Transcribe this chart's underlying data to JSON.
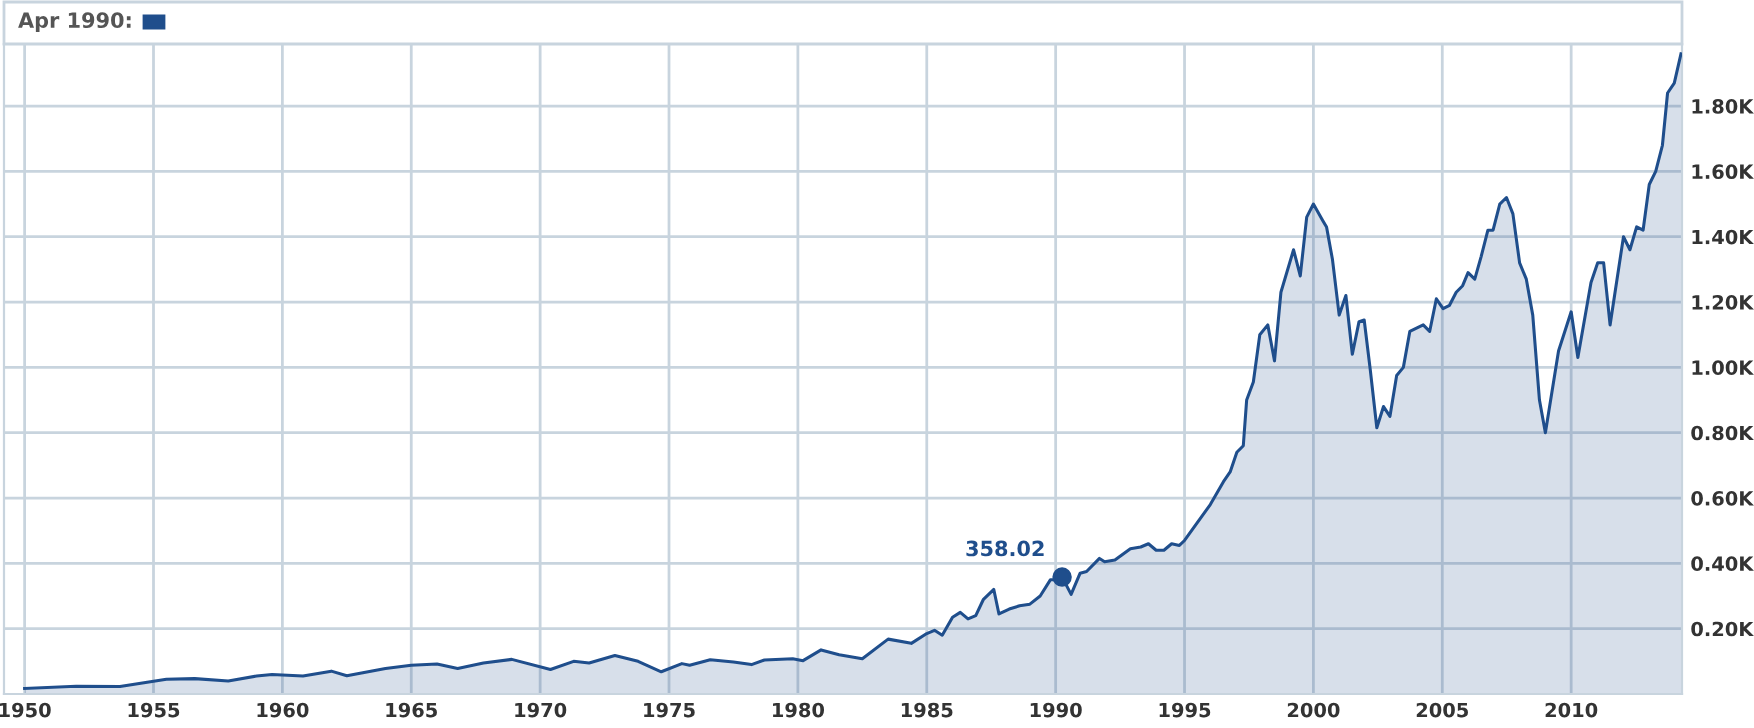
{
  "chart_data": {
    "type": "area",
    "x": [
      1950.0,
      1952.0,
      1953.7,
      1955.5,
      1956.6,
      1957.9,
      1959.0,
      1959.6,
      1960.8,
      1961.9,
      1962.5,
      1964.0,
      1965.0,
      1966.0,
      1966.8,
      1967.8,
      1968.9,
      1970.4,
      1971.3,
      1971.9,
      1972.9,
      1973.8,
      1974.7,
      1975.5,
      1975.8,
      1976.6,
      1977.5,
      1978.2,
      1978.7,
      1979.8,
      1980.2,
      1980.9,
      1981.6,
      1982.5,
      1983.5,
      1984.4,
      1985.0,
      1985.3,
      1985.6,
      1986.0,
      1986.3,
      1986.6,
      1986.9,
      1987.2,
      1987.6,
      1987.8,
      1988.2,
      1988.6,
      1989.0,
      1989.4,
      1989.8,
      1990.0,
      1990.25,
      1990.6,
      1990.95,
      1991.2,
      1991.7,
      1991.9,
      1992.3,
      1992.9,
      1993.3,
      1993.6,
      1993.9,
      1994.2,
      1994.5,
      1994.8,
      1995.0,
      1996.0,
      1996.51,
      1996.77,
      1997.03,
      1997.28,
      1997.41,
      1997.67,
      1997.92,
      1998.23,
      1998.49,
      1998.74,
      1999.23,
      1999.49,
      1999.74,
      2000.0,
      2000.36,
      2000.51,
      2000.74,
      2001.0,
      2001.26,
      2001.51,
      2001.77,
      2001.97,
      2002.21,
      2002.46,
      2002.72,
      2002.97,
      2003.23,
      2003.49,
      2003.74,
      2004.26,
      2004.51,
      2004.77,
      2005.03,
      2005.28,
      2005.54,
      2005.79,
      2006.0,
      2006.26,
      2006.51,
      2006.77,
      2006.97,
      2007.23,
      2007.49,
      2007.74,
      2008.0,
      2008.26,
      2008.51,
      2008.77,
      2009.0,
      2009.51,
      2010.0,
      2010.26,
      2010.77,
      2011.03,
      2011.26,
      2011.51,
      2012.03,
      2012.28,
      2012.54,
      2012.79,
      2013.03,
      2013.28,
      2013.54,
      2013.74,
      2014.0,
      2014.26
    ],
    "series": [
      {
        "color": "#1f4e8c",
        "values": [
          17,
          24,
          23,
          45,
          47,
          40,
          55,
          60,
          55,
          70,
          56,
          78,
          88,
          92,
          78,
          95,
          106,
          75,
          100,
          95,
          118,
          100,
          68,
          93,
          88,
          105,
          98,
          90,
          104,
          108,
          102,
          135,
          120,
          108,
          168,
          155,
          185,
          195,
          180,
          235,
          250,
          230,
          240,
          290,
          320,
          245,
          260,
          270,
          275,
          300,
          350,
          350,
          358,
          305,
          370,
          375,
          415,
          405,
          410,
          445,
          450,
          460,
          440,
          440,
          460,
          455,
          470,
          580,
          650,
          680,
          740,
          760,
          900,
          955,
          1100,
          1130,
          1020,
          1230,
          1360,
          1280,
          1460,
          1500,
          1450,
          1430,
          1330,
          1160,
          1220,
          1040,
          1140,
          1145,
          990,
          815,
          880,
          850,
          975,
          1000,
          1110,
          1130,
          1110,
          1210,
          1180,
          1190,
          1230,
          1250,
          1290,
          1270,
          1340,
          1420,
          1420,
          1500,
          1520,
          1470,
          1320,
          1270,
          1160,
          900,
          800,
          1050,
          1170,
          1030,
          1260,
          1320,
          1320,
          1130,
          1400,
          1360,
          1430,
          1420,
          1560,
          1600,
          1680,
          1840,
          1870,
          1960
        ]
      }
    ],
    "annotations": [
      "Apr 1990:",
      {
        "text": "358.02",
        "x": 1990.25,
        "y": 358.02
      }
    ],
    "xlim": [
      1949.2,
      2014.3
    ],
    "ylim": [
      0,
      1990
    ],
    "xticks": [
      1950,
      1955,
      1960,
      1965,
      1970,
      1975,
      1980,
      1985,
      1990,
      1995,
      2000,
      2005,
      2010
    ],
    "yticks": [
      {
        "value": 200,
        "label": "0.20K"
      },
      {
        "value": 400,
        "label": "0.40K"
      },
      {
        "value": 600,
        "label": "0.60K"
      },
      {
        "value": 800,
        "label": "0.80K"
      },
      {
        "value": 1000,
        "label": "1.00K"
      },
      {
        "value": 1200,
        "label": "1.20K"
      },
      {
        "value": 1400,
        "label": "1.40K"
      },
      {
        "value": 1600,
        "label": "1.60K"
      },
      {
        "value": 1800,
        "label": "1.80K"
      }
    ],
    "grid": true
  }
}
